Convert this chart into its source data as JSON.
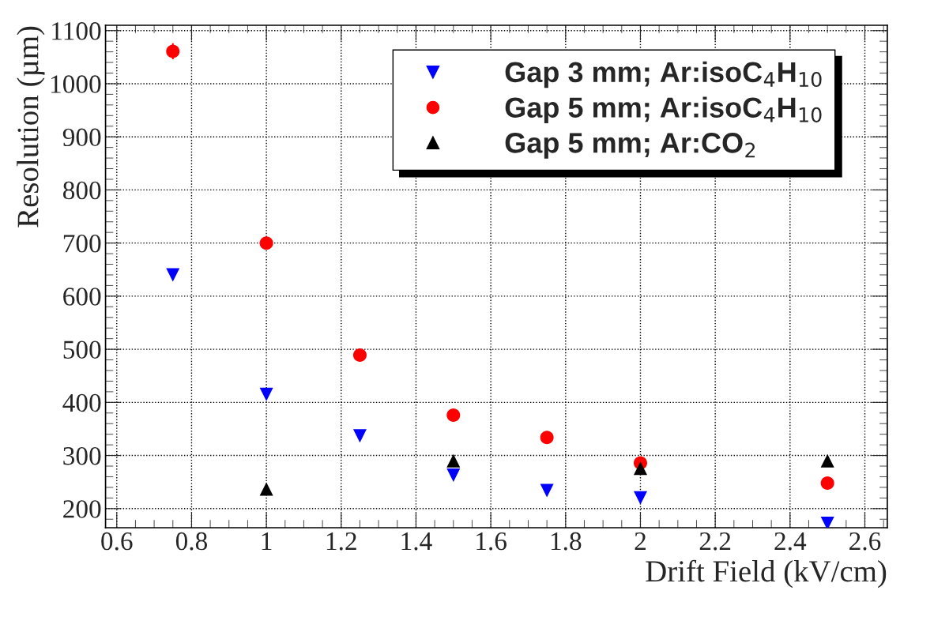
{
  "chart_data": {
    "type": "scatter",
    "xlabel": "Drift Field (kV/cm)",
    "ylabel": "Resolution (µm)",
    "xlim": [
      0.57,
      2.66
    ],
    "ylim": [
      164,
      1110
    ],
    "xticks": [
      0.6,
      0.8,
      1,
      1.2,
      1.4,
      1.6,
      1.8,
      2,
      2.2,
      2.4,
      2.6
    ],
    "yticks": [
      200,
      300,
      400,
      500,
      600,
      700,
      800,
      900,
      1000,
      1100
    ],
    "grid": true,
    "legend": "top right",
    "series": [
      {
        "name": "Gap 3 mm; Ar:isoC$_{4}$H$_{10}$",
        "color": "#0000ff",
        "marker": "triangle_down",
        "x": [
          0.75,
          1.0,
          1.25,
          1.5,
          1.75,
          2.0,
          2.5
        ],
        "values": [
          640,
          415,
          337,
          263,
          234,
          220,
          172
        ]
      },
      {
        "name": "Gap 5 mm; Ar:isoC$_{4}$H$_{10}$",
        "color": "#ff0000",
        "marker": "circle",
        "x": [
          0.75,
          1.0,
          1.25,
          1.5,
          1.75,
          2.0,
          2.5
        ],
        "values": [
          1061,
          700,
          489,
          376,
          334,
          286,
          248
        ],
        "errors": [
          15,
          null,
          null,
          null,
          null,
          null,
          null
        ]
      },
      {
        "name": "Gap 5 mm; Ar:CO$_{2}$",
        "color": "#000000",
        "marker": "triangle",
        "x": [
          1.0,
          1.5,
          2.0,
          2.5
        ],
        "values": [
          237,
          290,
          276,
          290
        ]
      }
    ]
  }
}
